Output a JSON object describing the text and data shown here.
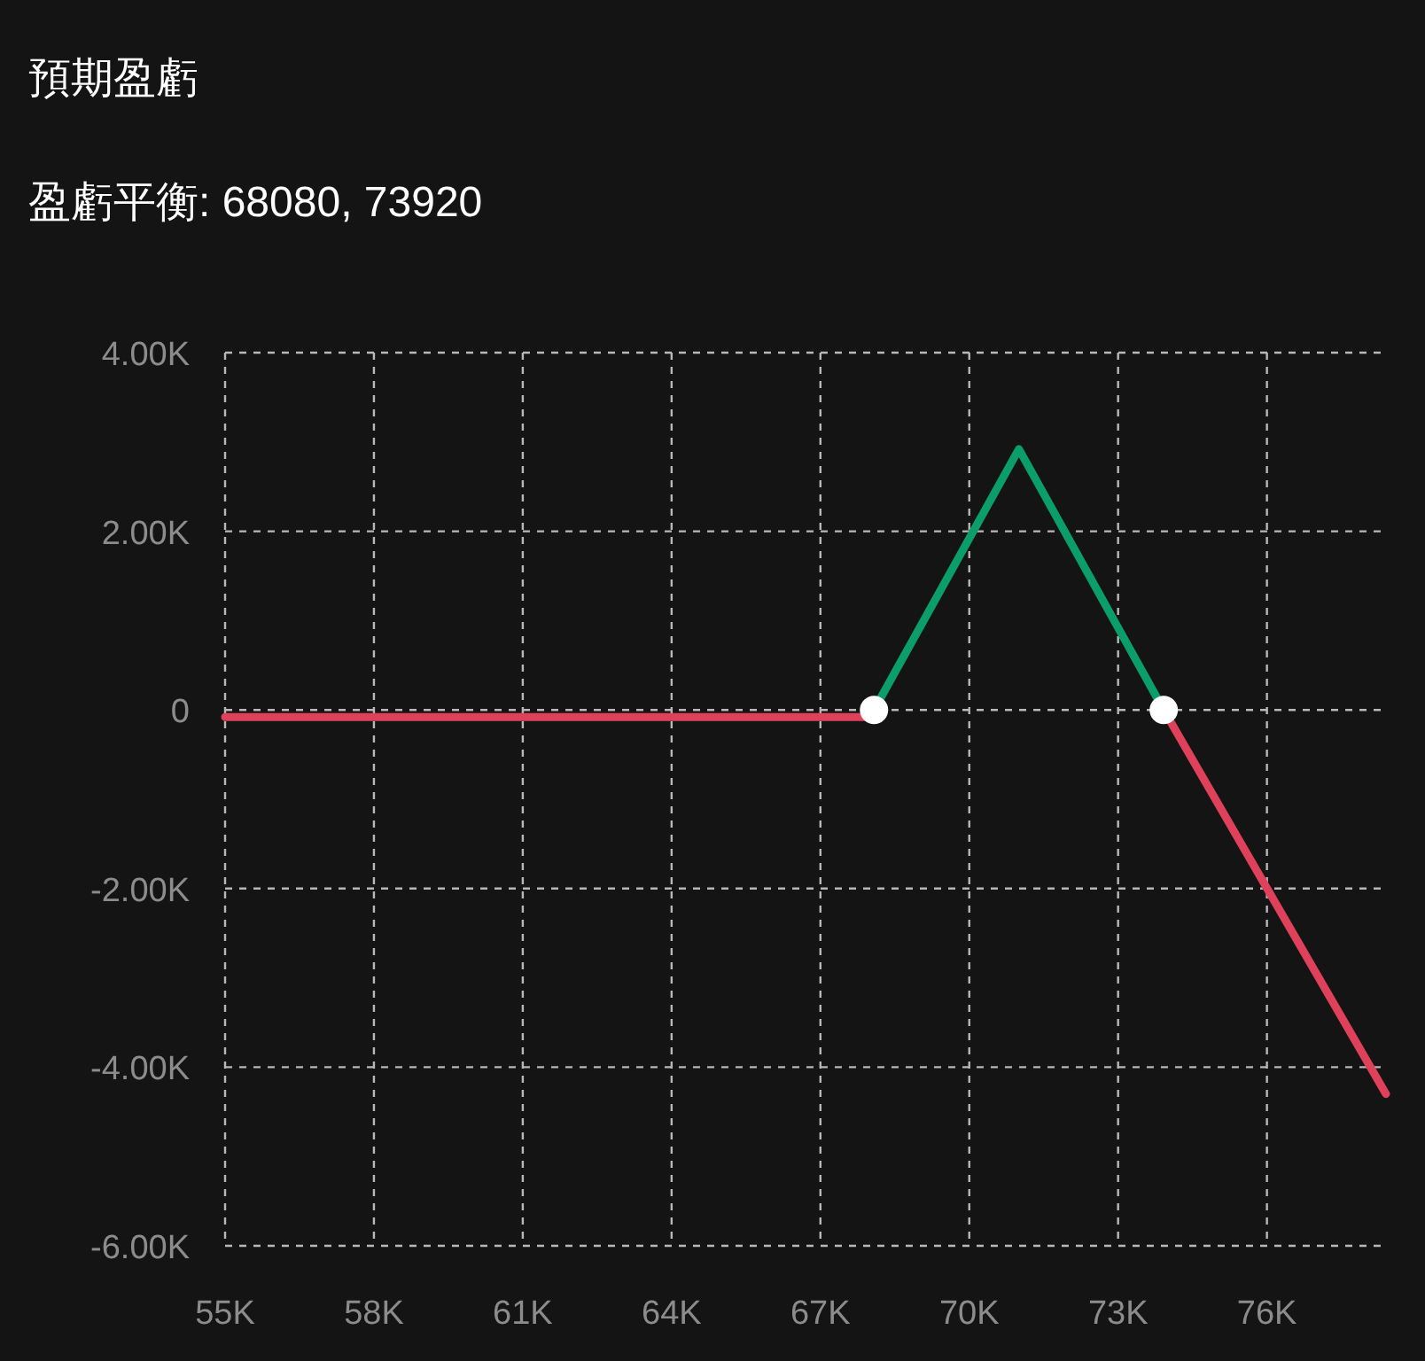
{
  "chart_data": {
    "type": "line",
    "title": "預期盈虧",
    "subtitle": "盈虧平衡: 68080, 73920",
    "xlim": [
      55000,
      78400
    ],
    "ylim": [
      -6000,
      4000
    ],
    "xticks": [
      {
        "value": 55000,
        "label": "55K"
      },
      {
        "value": 58000,
        "label": "58K"
      },
      {
        "value": 61000,
        "label": "61K"
      },
      {
        "value": 64000,
        "label": "64K"
      },
      {
        "value": 67000,
        "label": "67K"
      },
      {
        "value": 70000,
        "label": "70K"
      },
      {
        "value": 73000,
        "label": "73K"
      },
      {
        "value": 76000,
        "label": "76K"
      }
    ],
    "yticks": [
      {
        "value": -6000,
        "label": "-6.00K"
      },
      {
        "value": -4000,
        "label": "-4.00K"
      },
      {
        "value": -2000,
        "label": "-2.00K"
      },
      0,
      {
        "value": 2000,
        "label": "2.00K"
      },
      {
        "value": 4000,
        "label": "4.00K"
      }
    ],
    "grid": true,
    "series": [
      {
        "color": "#e0415a",
        "x": [
          55000,
          68000,
          68080
        ],
        "values": [
          -80,
          -80,
          0
        ]
      },
      {
        "color": "#0b9e6b",
        "x": [
          68080,
          71000,
          73920
        ],
        "values": [
          0,
          2920,
          0
        ]
      },
      {
        "color": "#e0415a",
        "x": [
          73920,
          78400
        ],
        "values": [
          0,
          -4300
        ]
      },
      {
        "type": "scatter",
        "color": "#ffffff",
        "marker": "circle",
        "x": [
          68080,
          73920
        ],
        "values": [
          0,
          0
        ]
      }
    ]
  }
}
